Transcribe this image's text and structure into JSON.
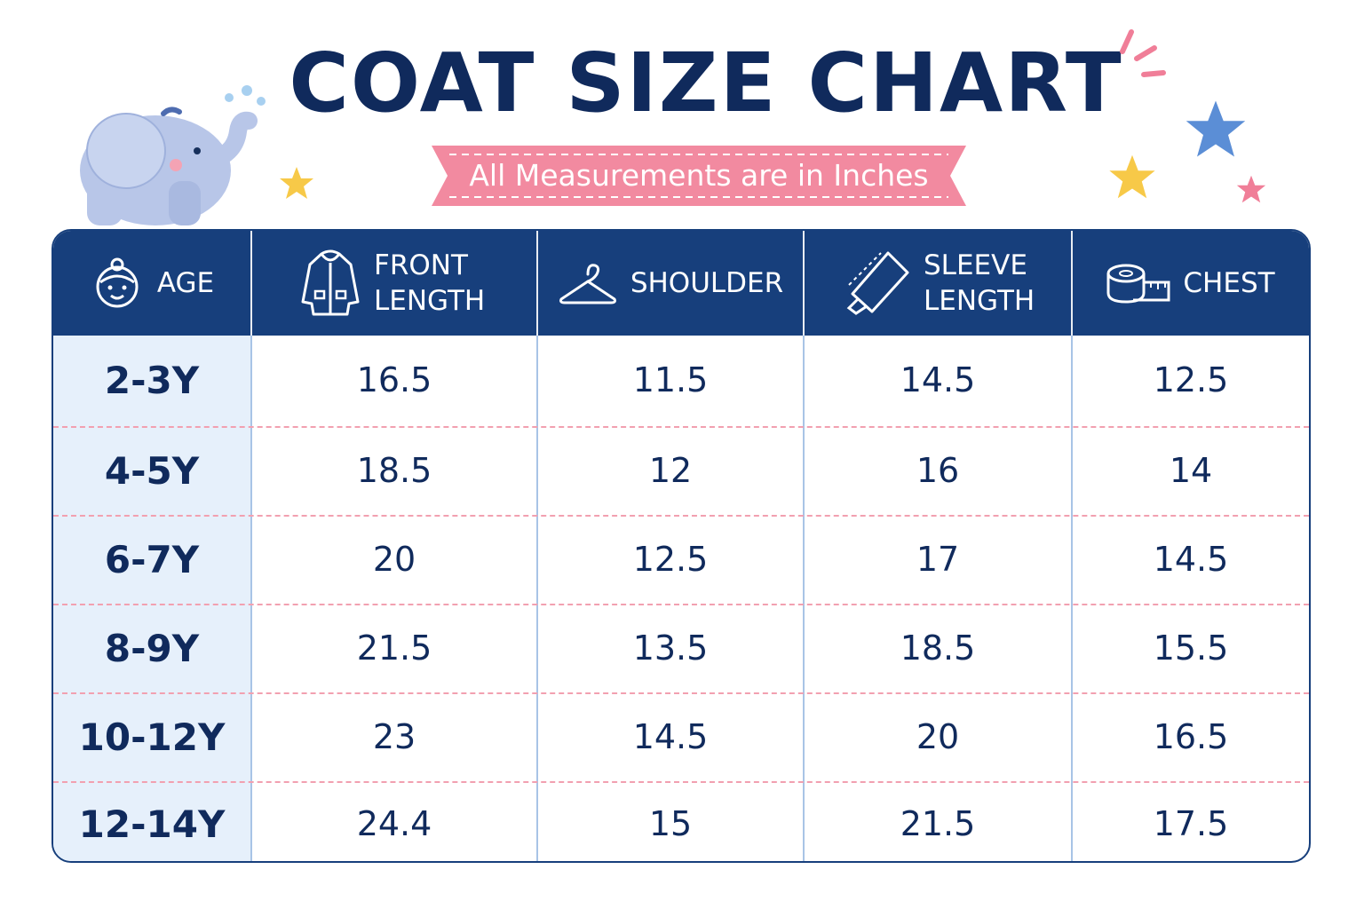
{
  "title": "COAT SIZE CHART",
  "subtitle": "All Measurements are in Inches",
  "colors": {
    "navy": "#173f7c",
    "title": "#102a5c",
    "ribbon": "#f28aa0",
    "age_column": "#e6f0fb",
    "row_separator": "#f2a0b0"
  },
  "columns": [
    {
      "key": "age",
      "label": "AGE",
      "icon": "kid-face-icon"
    },
    {
      "key": "front_length",
      "label": "FRONT LENGTH",
      "icon": "coat-icon"
    },
    {
      "key": "shoulder",
      "label": "SHOULDER",
      "icon": "hanger-icon"
    },
    {
      "key": "sleeve_length",
      "label": "SLEEVE LENGTH",
      "icon": "sleeve-icon"
    },
    {
      "key": "chest",
      "label": "CHEST",
      "icon": "tape-measure-icon"
    }
  ],
  "rows": [
    {
      "age": "2-3Y",
      "front_length": "16.5",
      "shoulder": "11.5",
      "sleeve_length": "14.5",
      "chest": "12.5"
    },
    {
      "age": "4-5Y",
      "front_length": "18.5",
      "shoulder": "12",
      "sleeve_length": "16",
      "chest": "14"
    },
    {
      "age": "6-7Y",
      "front_length": "20",
      "shoulder": "12.5",
      "sleeve_length": "17",
      "chest": "14.5"
    },
    {
      "age": "8-9Y",
      "front_length": "21.5",
      "shoulder": "13.5",
      "sleeve_length": "18.5",
      "chest": "15.5"
    },
    {
      "age": "10-12Y",
      "front_length": "23",
      "shoulder": "14.5",
      "sleeve_length": "20",
      "chest": "16.5"
    },
    {
      "age": "12-14Y",
      "front_length": "24.4",
      "shoulder": "15",
      "sleeve_length": "21.5",
      "chest": "17.5"
    }
  ],
  "decorations": [
    "elephant-illustration",
    "yellow-star-icon",
    "blue-star-icon",
    "pink-star-icon",
    "sparkle-icon"
  ]
}
